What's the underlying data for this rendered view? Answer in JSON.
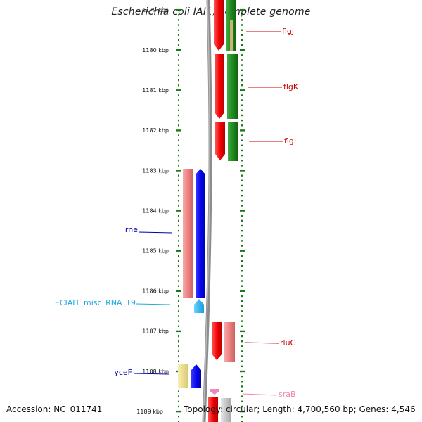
{
  "title": "Escherichia coli IAI1, complete genome",
  "footer": {
    "accession": "Accession: NC_011741",
    "info": "Topology: circular; Length: 4,700,560 bp; Genes: 4,546"
  },
  "scale": {
    "top_partial_label": "1179 kbp",
    "ticks": [
      "1180 kbp",
      "1181 kbp",
      "1182 kbp",
      "1183 kbp",
      "1184 kbp",
      "1185 kbp",
      "1186 kbp",
      "1187 kbp",
      "1188 kbp",
      "1189 kbp"
    ]
  },
  "colors": {
    "red": "#ee1111",
    "green": "#1f8a1f",
    "pink": "#ec8888",
    "blue": "#1010e6",
    "cyan": "#33bbee",
    "yellow": "#eee08a",
    "grey": "#c8c8c8",
    "dark_red_label": "#cc0000",
    "blue_label": "#0000aa",
    "cyan_label": "#22aadd",
    "pink_label": "#ee88aa",
    "track": "#1a7a1a"
  },
  "genes": [
    {
      "name": "flgJ",
      "color": "dark_red_label"
    },
    {
      "name": "flgK",
      "color": "dark_red_label"
    },
    {
      "name": "flgL",
      "color": "dark_red_label"
    },
    {
      "name": "rne",
      "color": "blue_label"
    },
    {
      "name": "ECIAI1_misc_RNA_19",
      "color": "cyan_label"
    },
    {
      "name": "rluC",
      "color": "dark_red_label"
    },
    {
      "name": "yceF",
      "color": "blue_label"
    },
    {
      "name": "sraB",
      "color": "pink_label"
    }
  ]
}
